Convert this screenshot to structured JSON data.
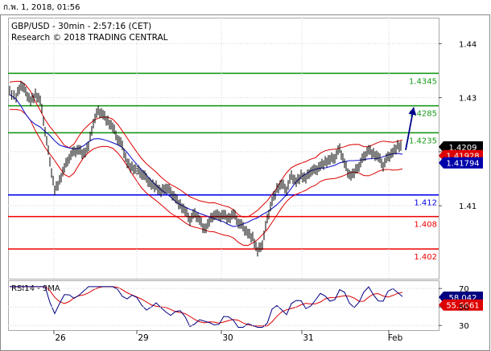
{
  "window_date": "ก.พ. 1, 2018, 01:56",
  "chart_data": {
    "type": "line",
    "title": "GBP/USD - 30min - 2:57:16 (CET)",
    "subtitle": "Research © 2018 TRADING CENTRAL",
    "y_ticks": [
      "1.44",
      "1.43",
      "1.42",
      "1.41"
    ],
    "ylim": [
      1.3965,
      1.4448
    ],
    "x_categories": [
      "26",
      "29",
      "30",
      "31",
      "Feb"
    ],
    "levels": [
      {
        "value": 1.4345,
        "label": "1.4345",
        "color": "#1a9a1a"
      },
      {
        "value": 1.4285,
        "label": "1.4285",
        "color": "#1a9a1a"
      },
      {
        "value": 1.4235,
        "label": "1.4235",
        "color": "#1a9a1a"
      },
      {
        "value": 1.412,
        "label": "1.412",
        "color": "#0000ee"
      },
      {
        "value": 1.408,
        "label": "1.408",
        "color": "#ee0000"
      },
      {
        "value": 1.402,
        "label": "1.402",
        "color": "#ee0000"
      }
    ],
    "price_series": [
      [
        0,
        1.431
      ],
      [
        8,
        1.43
      ],
      [
        14,
        1.4325
      ],
      [
        20,
        1.431
      ],
      [
        26,
        1.4295
      ],
      [
        32,
        1.4305
      ],
      [
        38,
        1.4295
      ],
      [
        44,
        1.424
      ],
      [
        50,
        1.418
      ],
      [
        56,
        1.413
      ],
      [
        62,
        1.4145
      ],
      [
        68,
        1.417
      ],
      [
        74,
        1.419
      ],
      [
        80,
        1.42
      ],
      [
        86,
        1.4205
      ],
      [
        92,
        1.4195
      ],
      [
        98,
        1.421
      ],
      [
        104,
        1.4255
      ],
      [
        110,
        1.4275
      ],
      [
        116,
        1.427
      ],
      [
        122,
        1.4255
      ],
      [
        128,
        1.4245
      ],
      [
        134,
        1.4225
      ],
      [
        140,
        1.421
      ],
      [
        146,
        1.418
      ],
      [
        152,
        1.417
      ],
      [
        158,
        1.4165
      ],
      [
        164,
        1.416
      ],
      [
        170,
        1.415
      ],
      [
        176,
        1.414
      ],
      [
        182,
        1.4135
      ],
      [
        188,
        1.4125
      ],
      [
        194,
        1.4135
      ],
      [
        200,
        1.4125
      ],
      [
        206,
        1.4115
      ],
      [
        212,
        1.41
      ],
      [
        218,
        1.409
      ],
      [
        224,
        1.4075
      ],
      [
        230,
        1.4085
      ],
      [
        236,
        1.4075
      ],
      [
        242,
        1.4055
      ],
      [
        248,
        1.407
      ],
      [
        254,
        1.4085
      ],
      [
        260,
        1.408
      ],
      [
        266,
        1.4085
      ],
      [
        272,
        1.4075
      ],
      [
        278,
        1.4085
      ],
      [
        284,
        1.407
      ],
      [
        290,
        1.406
      ],
      [
        296,
        1.405
      ],
      [
        302,
        1.404
      ],
      [
        308,
        1.4015
      ],
      [
        314,
        1.403
      ],
      [
        320,
        1.4075
      ],
      [
        326,
        1.411
      ],
      [
        332,
        1.413
      ],
      [
        338,
        1.414
      ],
      [
        344,
        1.413
      ],
      [
        350,
        1.4155
      ],
      [
        356,
        1.4145
      ],
      [
        362,
        1.4155
      ],
      [
        368,
        1.415
      ],
      [
        374,
        1.4165
      ],
      [
        380,
        1.4165
      ],
      [
        386,
        1.4175
      ],
      [
        392,
        1.418
      ],
      [
        398,
        1.4185
      ],
      [
        404,
        1.419
      ],
      [
        410,
        1.4205
      ],
      [
        416,
        1.418
      ],
      [
        422,
        1.4155
      ],
      [
        428,
        1.416
      ],
      [
        434,
        1.4175
      ],
      [
        440,
        1.419
      ],
      [
        446,
        1.4205
      ],
      [
        452,
        1.4195
      ],
      [
        458,
        1.419
      ],
      [
        464,
        1.4175
      ],
      [
        470,
        1.419
      ],
      [
        476,
        1.42
      ],
      [
        482,
        1.421
      ],
      [
        488,
        1.4209
      ]
    ],
    "price_labels": [
      {
        "value": 1.4209,
        "label": "1.4209",
        "bg": "#000000",
        "fg": "#ffffff"
      },
      {
        "value": 1.41928,
        "label": "1.41928",
        "bg": "#dd0000",
        "fg": "#ffffff"
      },
      {
        "value": 1.41794,
        "label": "1.41794",
        "bg": "#0000aa",
        "fg": "#ffffff"
      }
    ],
    "rsi": {
      "label": "RSI14 - 9MA",
      "y_ticks": [
        "70",
        "50",
        "30"
      ],
      "ylim": [
        25,
        78
      ],
      "value_label": "58.042",
      "ma_label": "55.6661"
    }
  }
}
